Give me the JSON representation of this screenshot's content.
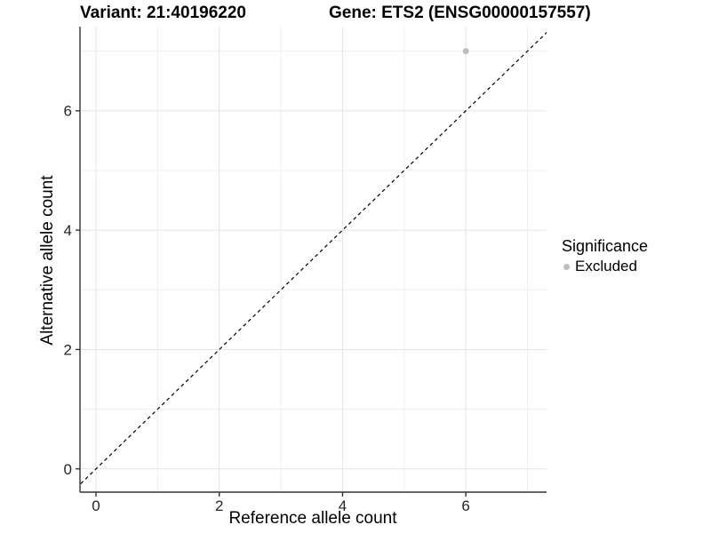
{
  "titles": {
    "variant": "Variant: 21:40196220",
    "gene": "Gene: ETS2 (ENSG00000157557)"
  },
  "chart_data": {
    "type": "scatter",
    "xlabel": "Reference allele count",
    "ylabel": "Alternative allele count",
    "x_ticks": [
      0,
      2,
      4,
      6
    ],
    "x_minor": [
      1,
      3,
      5,
      7
    ],
    "y_ticks": [
      0,
      2,
      4,
      6
    ],
    "y_minor": [
      1,
      3,
      5,
      7
    ],
    "xlim": [
      -0.26,
      7.31
    ],
    "ylim": [
      -0.39,
      7.41
    ],
    "grid": true,
    "points": [
      {
        "x": 6,
        "y": 7,
        "significance": "Excluded"
      }
    ],
    "reference_line": {
      "slope": 1,
      "intercept": 0,
      "style": "dashed"
    },
    "legend": {
      "title": "Significance",
      "position": "right",
      "entries": [
        {
          "label": "Excluded",
          "color": "#bdbdbd"
        }
      ]
    },
    "colors": {
      "point": "#bdbdbd",
      "grid_major": "#e4e4e4",
      "grid_minor": "#efefef",
      "axis": "#333333",
      "reference_line": "#000000",
      "tick_text": "#262626"
    }
  }
}
